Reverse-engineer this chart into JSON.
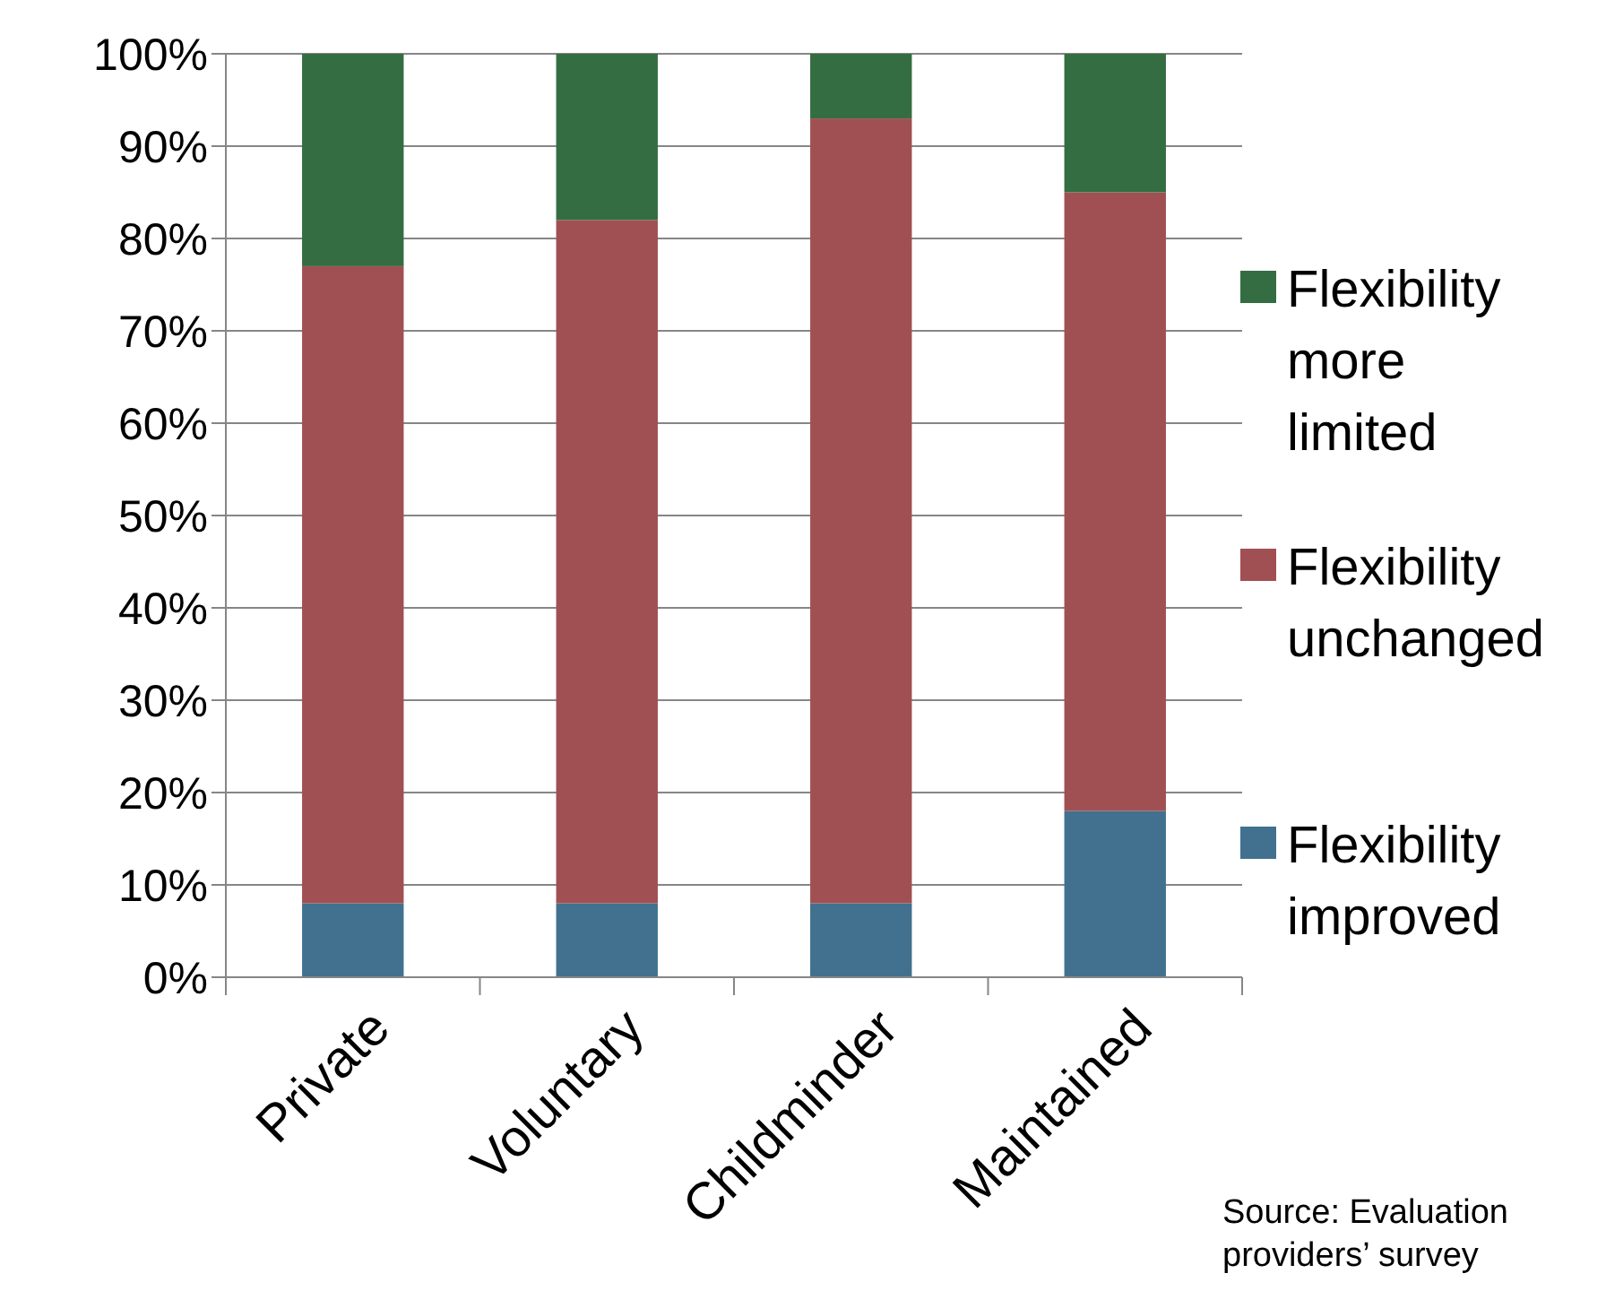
{
  "chart_data": {
    "type": "bar",
    "stacked": true,
    "categories": [
      "Private",
      "Voluntary",
      "Childminder",
      "Maintained"
    ],
    "series": [
      {
        "name": "Flexibility improved",
        "color": "#41718f",
        "values": [
          8,
          8,
          8,
          18
        ]
      },
      {
        "name": "Flexibility unchanged",
        "color": "#a05053",
        "values": [
          69,
          74,
          85,
          67
        ]
      },
      {
        "name": "Flexibility more limited",
        "color": "#356d42",
        "values": [
          23,
          18,
          7,
          15
        ]
      }
    ],
    "ylim": [
      0,
      100
    ],
    "yticks": [
      {
        "value": 0,
        "label": "0%"
      },
      {
        "value": 10,
        "label": "10%"
      },
      {
        "value": 20,
        "label": "20%"
      },
      {
        "value": 30,
        "label": "30%"
      },
      {
        "value": 40,
        "label": "40%"
      },
      {
        "value": 50,
        "label": "50%"
      },
      {
        "value": 60,
        "label": "60%"
      },
      {
        "value": 70,
        "label": "70%"
      },
      {
        "value": 80,
        "label": "80%"
      },
      {
        "value": 90,
        "label": "90%"
      },
      {
        "value": 100,
        "label": "100%"
      }
    ],
    "grid": "y",
    "legend": "right",
    "annotations": [
      "Source: Evaluation providers’ survey"
    ]
  }
}
